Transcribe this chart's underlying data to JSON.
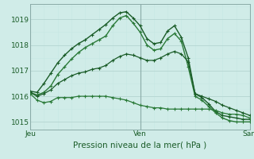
{
  "background_color": "#d0ece8",
  "grid_color_major": "#b8d8d4",
  "grid_color_minor": "#c8e8e4",
  "line_color1": "#1a5c28",
  "line_color2": "#2a7a38",
  "title": "Pression niveau de la mer( hPa )",
  "x_ticks_labels": [
    "Jeu",
    "Ven",
    "Sam"
  ],
  "x_ticks_pos": [
    0,
    16,
    32
  ],
  "ylim": [
    1014.7,
    1019.6
  ],
  "yticks": [
    1015,
    1016,
    1017,
    1018,
    1019
  ],
  "n_points": 33,
  "series": [
    [
      1016.2,
      1016.15,
      1016.5,
      1016.9,
      1017.3,
      1017.6,
      1017.85,
      1018.05,
      1018.2,
      1018.4,
      1018.6,
      1018.8,
      1019.05,
      1019.25,
      1019.3,
      1019.05,
      1018.75,
      1018.25,
      1018.05,
      1018.1,
      1018.55,
      1018.75,
      1018.3,
      1017.5,
      1016.1,
      1015.95,
      1015.7,
      1015.4,
      1015.25,
      1015.2,
      1015.15,
      1015.1,
      1015.1
    ],
    [
      1016.15,
      1016.05,
      1016.15,
      1016.4,
      1016.85,
      1017.15,
      1017.45,
      1017.7,
      1017.9,
      1018.05,
      1018.2,
      1018.35,
      1018.75,
      1019.05,
      1019.15,
      1018.85,
      1018.5,
      1018.0,
      1017.8,
      1017.85,
      1018.25,
      1018.45,
      1018.15,
      1017.15,
      1016.0,
      1015.85,
      1015.6,
      1015.35,
      1015.15,
      1015.05,
      1015.0,
      1015.0,
      1015.0
    ],
    [
      1016.15,
      1016.0,
      1016.1,
      1016.25,
      1016.5,
      1016.65,
      1016.8,
      1016.9,
      1016.95,
      1017.05,
      1017.1,
      1017.2,
      1017.4,
      1017.55,
      1017.65,
      1017.6,
      1017.5,
      1017.4,
      1017.4,
      1017.5,
      1017.65,
      1017.75,
      1017.65,
      1017.35,
      1016.1,
      1016.0,
      1015.9,
      1015.8,
      1015.65,
      1015.55,
      1015.45,
      1015.35,
      1015.25
    ],
    [
      1016.1,
      1015.85,
      1015.75,
      1015.8,
      1015.95,
      1015.95,
      1015.95,
      1016.0,
      1016.0,
      1016.0,
      1016.0,
      1016.0,
      1015.95,
      1015.9,
      1015.85,
      1015.75,
      1015.65,
      1015.6,
      1015.55,
      1015.55,
      1015.5,
      1015.5,
      1015.5,
      1015.5,
      1015.5,
      1015.5,
      1015.5,
      1015.45,
      1015.35,
      1015.3,
      1015.3,
      1015.25,
      1015.15
    ]
  ]
}
